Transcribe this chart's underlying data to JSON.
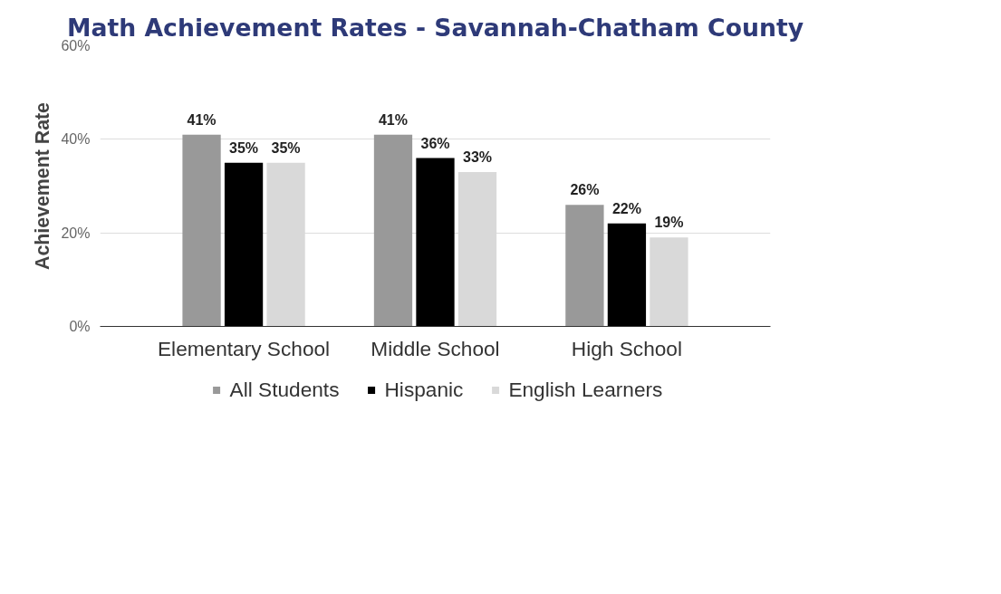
{
  "chart_data": {
    "type": "bar",
    "title": "Math Achievement Rates - Savannah-Chatham County",
    "ylabel": "Achievement Rate",
    "categories": [
      "Elementary School",
      "Middle School",
      "High School"
    ],
    "series": [
      {
        "name": "All Students",
        "color": "#999999",
        "values": [
          41,
          41,
          26
        ],
        "value_labels": [
          "41%",
          "41%",
          "26%"
        ]
      },
      {
        "name": "Hispanic",
        "color": "#000000",
        "values": [
          35,
          36,
          22
        ],
        "value_labels": [
          "35%",
          "36%",
          "22%"
        ]
      },
      {
        "name": "English Learners",
        "color": "#d9d9d9",
        "values": [
          35,
          33,
          19
        ],
        "value_labels": [
          "35%",
          "33%",
          "19%"
        ]
      }
    ],
    "ylim": [
      0,
      60
    ],
    "yticks": [
      {
        "value": 0,
        "label": "0%"
      },
      {
        "value": 20,
        "label": "20%"
      },
      {
        "value": 40,
        "label": "40%"
      },
      {
        "value": 60,
        "label": "60%"
      }
    ],
    "grid": "y",
    "legend": "bottom"
  }
}
